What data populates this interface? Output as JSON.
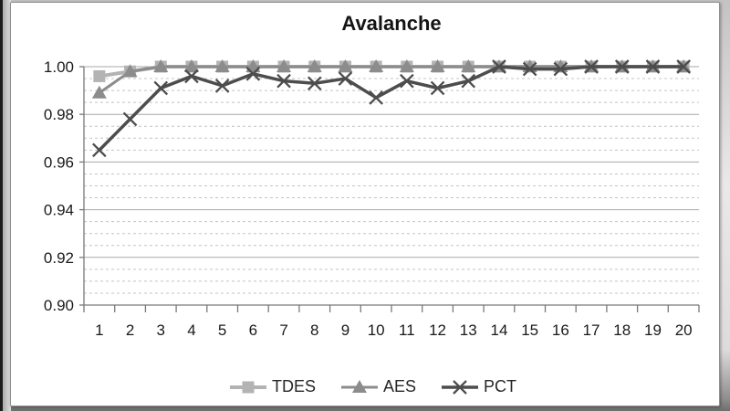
{
  "window": {
    "background_top": "#c3c3c3",
    "background_bottom": "#6e6e6e",
    "card_background": "#ffffff",
    "card_border": "#8f8f8f"
  },
  "chart_data": {
    "type": "line",
    "title": "Avalanche",
    "xlabel": "",
    "ylabel": "",
    "categories": [
      "1",
      "2",
      "3",
      "4",
      "5",
      "6",
      "7",
      "8",
      "9",
      "10",
      "11",
      "12",
      "13",
      "14",
      "15",
      "16",
      "17",
      "18",
      "19",
      "20"
    ],
    "series": [
      {
        "name": "TDES",
        "marker": "square",
        "color": "#b3b3b3",
        "line_width": 4,
        "values": [
          0.996,
          0.998,
          1.0,
          1.0,
          1.0,
          1.0,
          1.0,
          1.0,
          1.0,
          1.0,
          1.0,
          1.0,
          1.0,
          1.0,
          1.0,
          1.0,
          1.0,
          1.0,
          1.0,
          1.0
        ]
      },
      {
        "name": "AES",
        "marker": "triangle",
        "color": "#8c8c8c",
        "line_width": 3,
        "values": [
          0.989,
          0.998,
          1.0,
          1.0,
          1.0,
          1.0,
          1.0,
          1.0,
          1.0,
          1.0,
          1.0,
          1.0,
          1.0,
          1.0,
          1.0,
          1.0,
          1.0,
          1.0,
          1.0,
          1.0
        ]
      },
      {
        "name": "PCT",
        "marker": "x",
        "color": "#4d4d4d",
        "line_width": 3.5,
        "values": [
          0.965,
          0.978,
          0.991,
          0.996,
          0.992,
          0.997,
          0.994,
          0.993,
          0.995,
          0.987,
          0.994,
          0.991,
          0.994,
          1.0,
          0.999,
          0.999,
          1.0,
          1.0,
          1.0,
          1.0
        ]
      }
    ],
    "ylim": [
      0.9,
      1.0
    ],
    "y_major_step": 0.02,
    "y_minor_step": 0.005,
    "y_tick_labels": [
      "1.00",
      "0.98",
      "0.96",
      "0.94",
      "0.92",
      "0.90"
    ],
    "grid": "major-solid, minor-dashed",
    "legend_position": "bottom",
    "style": {
      "major_grid_color": "#a8a8a8",
      "minor_grid_color": "#c4c4c4",
      "axis_color": "#7a7a7a",
      "tick_label_color": "#1a1a1a"
    }
  }
}
